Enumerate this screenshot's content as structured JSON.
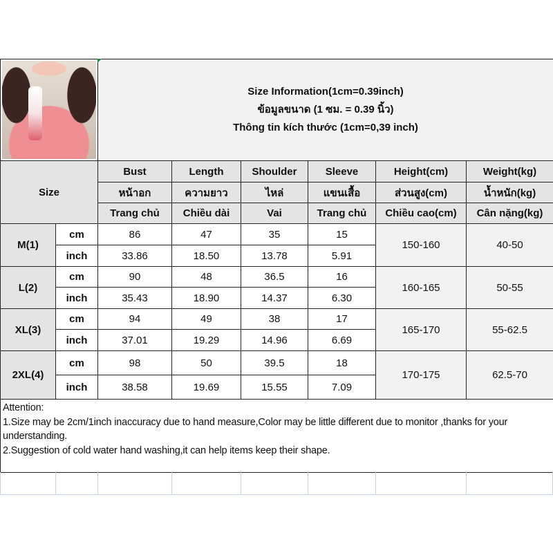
{
  "title_lines": [
    "Size Information(1cm=0.39inch)",
    "ข้อมูลขนาด (1 ซม. = 0.39 นิ้ว)",
    "Thông tin kích thước (1cm=0,39 inch)"
  ],
  "size_label": "Size",
  "headers": [
    [
      "Bust",
      "Length",
      "Shoulder",
      "Sleeve",
      "Height(cm)",
      "Weight(kg)"
    ],
    [
      "หน้าอก",
      "ความยาว",
      "ไหล่",
      "แขนเสื้อ",
      "ส่วนสูง(cm)",
      "น้ำหนัก(kg)"
    ],
    [
      "Trang chủ",
      "Chiều dài",
      "Vai",
      "Trang chủ",
      "Chiều cao(cm)",
      "Cân nặng(kg)"
    ]
  ],
  "rows": [
    {
      "size": "M(1)",
      "cm": [
        "86",
        "47",
        "35",
        "15"
      ],
      "inch": [
        "33.86",
        "18.50",
        "13.78",
        "5.91"
      ],
      "height": "150-160",
      "weight": "40-50"
    },
    {
      "size": "L(2)",
      "cm": [
        "90",
        "48",
        "36.5",
        "16"
      ],
      "inch": [
        "35.43",
        "18.90",
        "14.37",
        "6.30"
      ],
      "height": "160-165",
      "weight": "50-55"
    },
    {
      "size": "XL(3)",
      "cm": [
        "94",
        "49",
        "38",
        "17"
      ],
      "inch": [
        "37.01",
        "19.29",
        "14.96",
        "6.69"
      ],
      "height": "165-170",
      "weight": "55-62.5"
    },
    {
      "size": "2XL(4)",
      "cm": [
        "98",
        "50",
        "39.5",
        "18"
      ],
      "inch": [
        "38.58",
        "19.69",
        "15.55",
        "7.09"
      ],
      "height": "170-175",
      "weight": "62.5-70"
    }
  ],
  "units": {
    "cm": "cm",
    "inch": "inch"
  },
  "attention": {
    "heading": "Attention:",
    "line1": "1.Size may be 2cm/1inch inaccuracy due to hand measure,Color may be little different due to monitor ,thanks for your understanding.",
    "line2": "2.Suggestion of cold water hand washing,it can help items keep their shape."
  },
  "colors": {
    "header_bg": "#e4e4e4",
    "merged_bg": "#f2f2f2",
    "border": "#222222"
  }
}
